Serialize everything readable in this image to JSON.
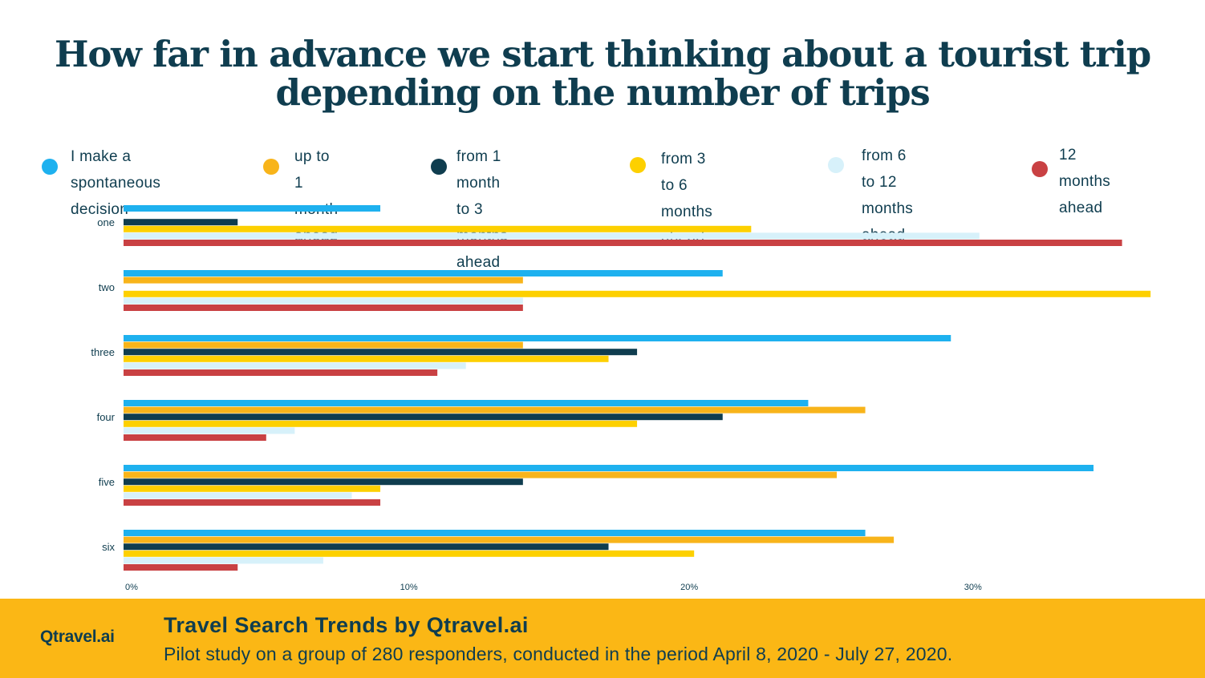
{
  "title": {
    "line1": "How far in advance we start thinking about a tourist trip",
    "line2": "depending on the number of trips"
  },
  "footer": {
    "logo": "Qtravel.ai",
    "heading": "Travel Search Trends by Qtravel.ai",
    "subtitle": "Pilot study on a group of 280 responders, conducted in the period April 8, 2020 - July 27, 2020."
  },
  "legend": [
    {
      "line1": "I make a spontaneous",
      "line2": "decision"
    },
    {
      "line1": "up to 1 month",
      "line2": "ahead"
    },
    {
      "line1": "from 1 month to 3",
      "line2": "months ahead"
    },
    {
      "line1": "from 3 to 6 months",
      "line2": "ahead"
    },
    {
      "line1": "from 6 to 12 months",
      "line2": "ahead"
    },
    {
      "line1": "12 months",
      "line2": "ahead"
    }
  ],
  "colors": {
    "title": "#0f3d4f",
    "footer_bg": "#fbb715"
  },
  "chart_data": {
    "type": "bar",
    "orientation": "horizontal",
    "title": "How far in advance we start thinking about a tourist trip depending on the number of trips",
    "xlabel": "",
    "ylabel": "",
    "categories": [
      "one",
      "two",
      "three",
      "four",
      "five",
      "six"
    ],
    "x_ticks": [
      "0%",
      "10%",
      "20%",
      "30%"
    ],
    "xlim": [
      0,
      36
    ],
    "grid": false,
    "legend_position": "top",
    "series": [
      {
        "name": "I make a spontaneous decision",
        "color": "#1eb1ef",
        "values": [
          9,
          21,
          29,
          24,
          34,
          26
        ]
      },
      {
        "name": "up to 1 month ahead",
        "color": "#f8b41a",
        "values": [
          0,
          14,
          14,
          26,
          25,
          27
        ]
      },
      {
        "name": "from 1 month to 3 months ahead",
        "color": "#0f3d4f",
        "values": [
          4,
          0,
          18,
          21,
          14,
          17
        ]
      },
      {
        "name": "from 3 to 6 months ahead",
        "color": "#fdd000",
        "values": [
          22,
          36,
          17,
          18,
          9,
          20
        ]
      },
      {
        "name": "from 6 to 12 months ahead",
        "color": "#d7f1fa",
        "values": [
          30,
          14,
          12,
          6,
          8,
          7
        ]
      },
      {
        "name": "12 months ahead",
        "color": "#c94143",
        "values": [
          35,
          14,
          11,
          5,
          9,
          4
        ]
      }
    ]
  }
}
